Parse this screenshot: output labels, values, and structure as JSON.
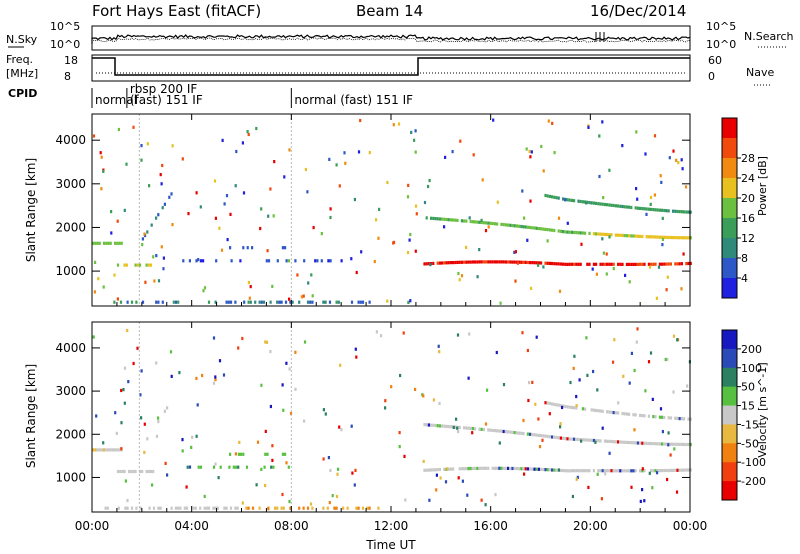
{
  "header": {
    "title": "Fort Hays East (fitACF)",
    "beam": "Beam 14",
    "date": "16/Dec/2014"
  },
  "top_panels": {
    "nsky": {
      "label": "N.Sky",
      "tick_top": "10^5",
      "tick_bottom": "10^0",
      "right_label": "N.Search",
      "right_tick_top": "10^5",
      "right_tick_bottom": "10^0"
    },
    "freq": {
      "label_line1": "Freq.",
      "label_line2": "[MHz]",
      "tick_top": "18",
      "tick_bottom": "8",
      "right_label": "Nave",
      "right_tick_top": "60",
      "right_tick_bottom": "0"
    },
    "cpid": {
      "label": "CPID",
      "segments": [
        {
          "start_hour": 0.0,
          "end_hour": 1.4,
          "text": "normal"
        },
        {
          "start_hour": 1.4,
          "end_hour": 8.0,
          "text": "rbsp 200 IF",
          "text2": "(fast) 151 IF"
        },
        {
          "start_hour": 8.0,
          "end_hour": 24.0,
          "text": "normal (fast) 151 IF"
        }
      ]
    }
  },
  "colors": {
    "power_scale": [
      "#2020e0",
      "#2e58c8",
      "#2f8a7a",
      "#3a9e58",
      "#6cc040",
      "#e8c020",
      "#f08a10",
      "#f04a0c",
      "#e80000"
    ],
    "velocity_scale": [
      "#1818c0",
      "#2a4ab8",
      "#2a8060",
      "#58c040",
      "#c8c8c8",
      "#e8b840",
      "#f08010",
      "#f04010",
      "#e80000"
    ]
  },
  "chart_data": [
    {
      "type": "heatmap",
      "name": "power",
      "ylabel": "Slant Range [km]",
      "y_ticks": [
        1000,
        2000,
        3000,
        4000
      ],
      "ylim": [
        200,
        4600
      ],
      "x_ticks": [
        "00:00",
        "04:00",
        "08:00",
        "12:00",
        "16:00",
        "20:00",
        "00:00"
      ],
      "xlim_hours": [
        0,
        24
      ],
      "colorbar": {
        "label": "Power [dB]",
        "ticks": [
          "4",
          "8",
          "12",
          "16",
          "20",
          "24",
          "28"
        ],
        "range": [
          0,
          32
        ]
      },
      "features": [
        {
          "hours": [
            0.0,
            1.2
          ],
          "range_km": [
            1600,
            2800
          ],
          "level": "high"
        },
        {
          "hours": [
            1.0,
            2.5
          ],
          "range_km": [
            1100,
            2000
          ],
          "level": "medium"
        },
        {
          "hours": [
            2.0,
            3.3
          ],
          "range_km": [
            2000,
            3300
          ],
          "level": "low"
        },
        {
          "hours": [
            3.0,
            10.0
          ],
          "range_km": [
            1200,
            1800
          ],
          "level": "low"
        },
        {
          "hours": [
            0.5,
            11.0
          ],
          "range_km": [
            200,
            600
          ],
          "level": "low"
        },
        {
          "hours": [
            13.3,
            24.0
          ],
          "range_km": [
            1000,
            2800
          ],
          "level": "high"
        }
      ]
    },
    {
      "type": "heatmap",
      "name": "velocity",
      "ylabel": "Slant Range [km]",
      "xlabel": "Time UT",
      "y_ticks": [
        1000,
        2000,
        3000,
        4000
      ],
      "ylim": [
        200,
        4600
      ],
      "x_ticks": [
        "00:00",
        "04:00",
        "08:00",
        "12:00",
        "16:00",
        "20:00",
        "00:00"
      ],
      "xlim_hours": [
        0,
        24
      ],
      "colorbar": {
        "label": "Velocity [m s^-1]",
        "ticks": [
          "200",
          "100",
          "50",
          "15",
          "-15",
          "-50",
          "-100",
          "-200"
        ],
        "range": [
          -250,
          250
        ]
      },
      "features": [
        {
          "hours": [
            0.0,
            1.2
          ],
          "range_km": [
            1600,
            2800
          ],
          "velocity": "near zero"
        },
        {
          "hours": [
            3.0,
            7.0
          ],
          "range_km": [
            1200,
            1800
          ],
          "velocity": "positive"
        },
        {
          "hours": [
            5.0,
            13.0
          ],
          "range_km": [
            200,
            600
          ],
          "velocity": "negative"
        },
        {
          "hours": [
            13.3,
            24.0
          ],
          "range_km": [
            1000,
            2800
          ],
          "velocity": "near zero"
        }
      ]
    }
  ]
}
